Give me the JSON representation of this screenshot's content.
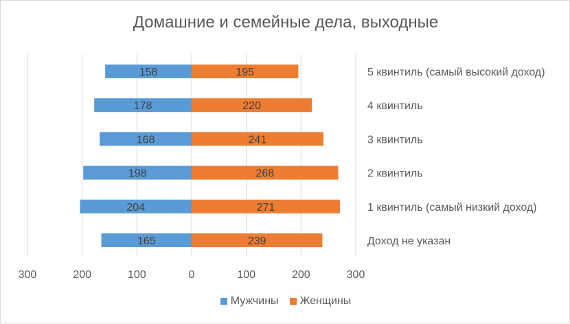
{
  "chart_data": {
    "type": "bar",
    "orientation": "horizontal-diverging",
    "title": "Домашние и семейные дела, выходные",
    "categories": [
      "5 квинтиль (самый высокий доход)",
      "4 квинтиль",
      "3 квинтиль",
      "2 квинтиль",
      "1 квинтиль (самый низкий доход)",
      "Доход не указан"
    ],
    "series": [
      {
        "name": "Мужчины",
        "color": "#5b9bd5",
        "values": [
          158,
          178,
          168,
          198,
          204,
          165
        ]
      },
      {
        "name": "Женщины",
        "color": "#ed7d31",
        "values": [
          195,
          220,
          241,
          268,
          271,
          239
        ]
      }
    ],
    "x_ticks": [
      "300",
      "200",
      "100",
      "0",
      "100",
      "200",
      "300"
    ],
    "xlim": [
      -300,
      300
    ],
    "grid": true,
    "legend_position": "bottom"
  }
}
